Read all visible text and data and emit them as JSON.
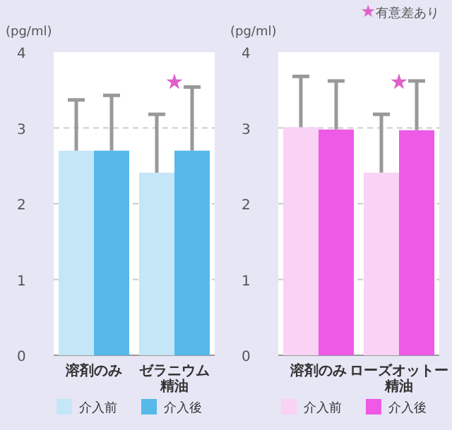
{
  "chart_data": [
    {
      "type": "bar",
      "ylabel": "(pg/ml)",
      "categories": [
        "溶剤のみ",
        "ゼラニウム精油"
      ],
      "series": [
        {
          "name": "介入前",
          "color": "#c5e6f7",
          "values": [
            2.7,
            2.41
          ],
          "errors": [
            [
              2.7,
              3.37
            ],
            [
              2.41,
              3.18
            ]
          ]
        },
        {
          "name": "介入後",
          "color": "#56b9ea",
          "values": [
            2.7,
            2.7
          ],
          "errors": [
            [
              2.7,
              3.43
            ],
            [
              2.7,
              3.54
            ]
          ]
        }
      ],
      "ylim": [
        0,
        4
      ],
      "yticks": [
        0,
        1,
        2,
        3,
        4
      ],
      "grid": "y",
      "legend": "bottom",
      "annotations": [
        "★"
      ]
    },
    {
      "type": "bar",
      "ylabel": "(pg/ml)",
      "categories": [
        "溶剤のみ",
        "ローズオットー精油"
      ],
      "series": [
        {
          "name": "介入前",
          "color": "#f9d3f3",
          "values": [
            3.01,
            2.41
          ],
          "errors": [
            [
              3.01,
              3.68
            ],
            [
              2.41,
              3.18
            ]
          ]
        },
        {
          "name": "介入後",
          "color": "#ee5ae6",
          "values": [
            2.98,
            2.97
          ],
          "errors": [
            [
              2.98,
              3.62
            ],
            [
              2.97,
              3.62
            ]
          ]
        }
      ],
      "ylim": [
        0,
        4
      ],
      "yticks": [
        0,
        1,
        2,
        3,
        4
      ],
      "grid": "y",
      "legend": "bottom",
      "annotations": [
        "★",
        "★有意差あり"
      ]
    }
  ]
}
